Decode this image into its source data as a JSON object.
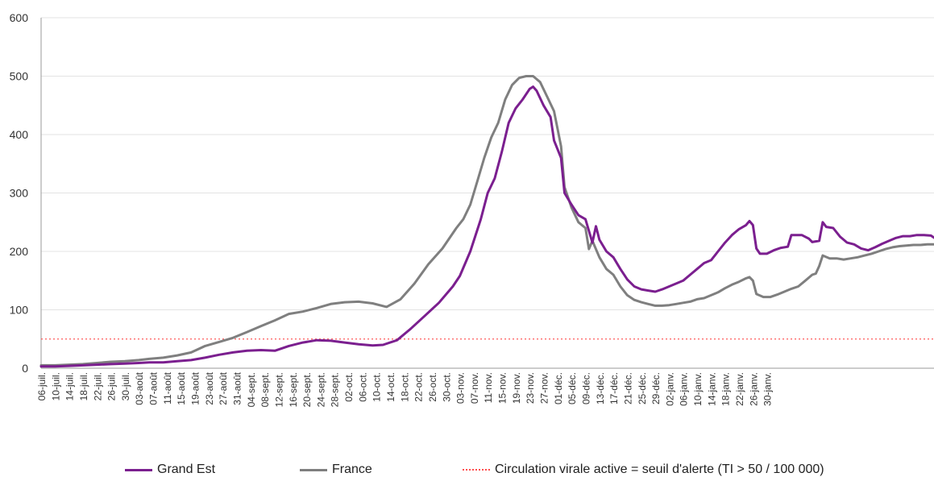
{
  "chart_data": {
    "type": "line",
    "title": "",
    "xlabel": "",
    "ylabel": "",
    "ylim": [
      0,
      600
    ],
    "yticks": [
      0,
      100,
      200,
      300,
      400,
      500,
      600
    ],
    "grid": "horizontal",
    "legend_position": "bottom",
    "x_tick_labels": [
      "06-juil.",
      "10-juil.",
      "14-juil.",
      "18-juil.",
      "22-juil.",
      "26-juil.",
      "30-juil.",
      "03-août",
      "07-août",
      "11-août",
      "15-août",
      "19-août",
      "23-août",
      "27-août",
      "31-août",
      "04-sept.",
      "08-sept.",
      "12-sept.",
      "16-sept.",
      "20-sept.",
      "24-sept.",
      "28-sept.",
      "02-oct.",
      "06-oct.",
      "10-oct.",
      "14-oct.",
      "18-oct.",
      "22-oct.",
      "26-oct.",
      "30-oct.",
      "03-nov.",
      "07-nov.",
      "11-nov.",
      "15-nov.",
      "19-nov.",
      "23-nov.",
      "27-nov.",
      "01-déc.",
      "05-déc.",
      "09-déc.",
      "13-déc.",
      "17-déc.",
      "21-déc.",
      "25-déc.",
      "29-déc.",
      "02-janv.",
      "06-janv.",
      "10-janv.",
      "14-janv.",
      "18-janv.",
      "22-janv.",
      "26-janv.",
      "30-janv."
    ],
    "series": [
      {
        "name": "Grand Est",
        "color": "#7b1f8f",
        "points": [
          [
            0,
            3
          ],
          [
            4,
            3
          ],
          [
            8,
            4
          ],
          [
            12,
            5
          ],
          [
            16,
            6
          ],
          [
            20,
            7
          ],
          [
            24,
            8
          ],
          [
            28,
            9
          ],
          [
            31,
            10
          ],
          [
            35,
            10
          ],
          [
            39,
            12
          ],
          [
            43,
            14
          ],
          [
            47,
            18
          ],
          [
            51,
            23
          ],
          [
            55,
            27
          ],
          [
            59,
            30
          ],
          [
            63,
            31
          ],
          [
            67,
            30
          ],
          [
            71,
            38
          ],
          [
            75,
            44
          ],
          [
            79,
            48
          ],
          [
            83,
            47
          ],
          [
            87,
            44
          ],
          [
            91,
            41
          ],
          [
            95,
            39
          ],
          [
            98,
            40
          ],
          [
            102,
            48
          ],
          [
            106,
            68
          ],
          [
            110,
            90
          ],
          [
            114,
            112
          ],
          [
            118,
            140
          ],
          [
            120,
            158
          ],
          [
            123,
            200
          ],
          [
            126,
            255
          ],
          [
            128,
            300
          ],
          [
            130,
            325
          ],
          [
            132,
            370
          ],
          [
            134,
            420
          ],
          [
            136,
            445
          ],
          [
            138,
            460
          ],
          [
            140,
            478
          ],
          [
            141,
            482
          ],
          [
            142,
            475
          ],
          [
            144,
            450
          ],
          [
            146,
            430
          ],
          [
            147,
            390
          ],
          [
            149,
            360
          ],
          [
            150,
            300
          ],
          [
            152,
            280
          ],
          [
            154,
            262
          ],
          [
            156,
            255
          ],
          [
            158,
            215
          ],
          [
            159,
            243
          ],
          [
            160,
            220
          ],
          [
            162,
            200
          ],
          [
            164,
            190
          ],
          [
            166,
            170
          ],
          [
            168,
            152
          ],
          [
            170,
            140
          ],
          [
            172,
            135
          ],
          [
            174,
            133
          ],
          [
            176,
            131
          ],
          [
            178,
            135
          ],
          [
            180,
            140
          ],
          [
            182,
            145
          ],
          [
            184,
            150
          ],
          [
            186,
            160
          ],
          [
            188,
            170
          ],
          [
            190,
            180
          ],
          [
            192,
            185
          ],
          [
            194,
            200
          ],
          [
            196,
            215
          ],
          [
            198,
            228
          ],
          [
            200,
            238
          ],
          [
            202,
            245
          ],
          [
            203,
            252
          ],
          [
            204,
            245
          ],
          [
            205,
            205
          ],
          [
            206,
            196
          ],
          [
            208,
            196
          ],
          [
            210,
            202
          ],
          [
            212,
            206
          ],
          [
            214,
            208
          ],
          [
            215,
            228
          ],
          [
            218,
            228
          ],
          [
            220,
            222
          ],
          [
            221,
            216
          ],
          [
            223,
            218
          ],
          [
            224,
            250
          ],
          [
            225,
            242
          ],
          [
            227,
            240
          ],
          [
            229,
            225
          ],
          [
            231,
            215
          ],
          [
            233,
            212
          ],
          [
            235,
            205
          ],
          [
            237,
            202
          ],
          [
            239,
            207
          ],
          [
            241,
            213
          ],
          [
            243,
            218
          ],
          [
            245,
            223
          ],
          [
            247,
            226
          ],
          [
            249,
            226
          ],
          [
            251,
            228
          ],
          [
            253,
            228
          ],
          [
            255,
            227
          ],
          [
            256,
            223
          ]
        ]
      },
      {
        "name": "France",
        "color": "#7f7f7f",
        "points": [
          [
            0,
            5
          ],
          [
            4,
            5
          ],
          [
            8,
            6
          ],
          [
            12,
            7
          ],
          [
            16,
            9
          ],
          [
            20,
            11
          ],
          [
            24,
            12
          ],
          [
            28,
            14
          ],
          [
            31,
            16
          ],
          [
            35,
            18
          ],
          [
            39,
            22
          ],
          [
            43,
            27
          ],
          [
            47,
            38
          ],
          [
            51,
            45
          ],
          [
            55,
            52
          ],
          [
            59,
            62
          ],
          [
            63,
            72
          ],
          [
            67,
            82
          ],
          [
            71,
            93
          ],
          [
            75,
            97
          ],
          [
            79,
            103
          ],
          [
            83,
            110
          ],
          [
            87,
            113
          ],
          [
            91,
            114
          ],
          [
            95,
            111
          ],
          [
            99,
            105
          ],
          [
            103,
            118
          ],
          [
            107,
            145
          ],
          [
            111,
            178
          ],
          [
            115,
            205
          ],
          [
            119,
            240
          ],
          [
            121,
            255
          ],
          [
            123,
            280
          ],
          [
            125,
            320
          ],
          [
            127,
            360
          ],
          [
            129,
            395
          ],
          [
            131,
            420
          ],
          [
            133,
            460
          ],
          [
            135,
            485
          ],
          [
            137,
            497
          ],
          [
            139,
            500
          ],
          [
            141,
            500
          ],
          [
            143,
            490
          ],
          [
            145,
            465
          ],
          [
            147,
            440
          ],
          [
            149,
            380
          ],
          [
            150,
            310
          ],
          [
            152,
            275
          ],
          [
            154,
            250
          ],
          [
            156,
            240
          ],
          [
            157,
            204
          ],
          [
            158,
            218
          ],
          [
            160,
            190
          ],
          [
            162,
            170
          ],
          [
            164,
            160
          ],
          [
            166,
            140
          ],
          [
            168,
            125
          ],
          [
            170,
            117
          ],
          [
            172,
            113
          ],
          [
            174,
            110
          ],
          [
            176,
            107
          ],
          [
            178,
            107
          ],
          [
            180,
            108
          ],
          [
            182,
            110
          ],
          [
            184,
            112
          ],
          [
            186,
            114
          ],
          [
            188,
            118
          ],
          [
            190,
            120
          ],
          [
            192,
            125
          ],
          [
            194,
            130
          ],
          [
            196,
            137
          ],
          [
            198,
            143
          ],
          [
            200,
            148
          ],
          [
            202,
            154
          ],
          [
            203,
            156
          ],
          [
            204,
            150
          ],
          [
            205,
            127
          ],
          [
            207,
            122
          ],
          [
            209,
            122
          ],
          [
            211,
            126
          ],
          [
            213,
            131
          ],
          [
            215,
            136
          ],
          [
            217,
            140
          ],
          [
            219,
            150
          ],
          [
            221,
            160
          ],
          [
            222,
            162
          ],
          [
            223,
            175
          ],
          [
            224,
            193
          ],
          [
            226,
            188
          ],
          [
            228,
            188
          ],
          [
            230,
            186
          ],
          [
            232,
            188
          ],
          [
            234,
            190
          ],
          [
            236,
            193
          ],
          [
            238,
            196
          ],
          [
            240,
            200
          ],
          [
            242,
            204
          ],
          [
            244,
            207
          ],
          [
            246,
            209
          ],
          [
            248,
            210
          ],
          [
            250,
            211
          ],
          [
            252,
            211
          ],
          [
            254,
            212
          ],
          [
            256,
            212
          ]
        ]
      }
    ],
    "threshold": {
      "name": "Circulation virale active = seuil d'alerte (TI > 50 / 100 000)",
      "value": 50,
      "color": "#ff0000"
    }
  }
}
